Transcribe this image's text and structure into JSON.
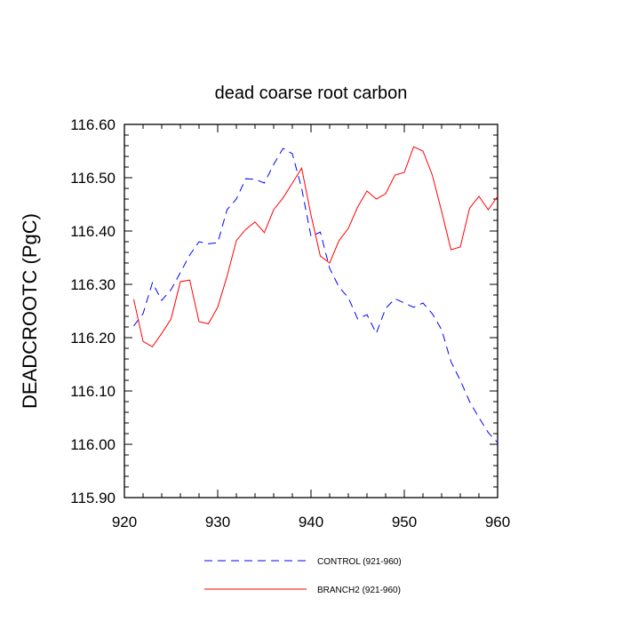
{
  "chart_data": {
    "type": "line",
    "title": "dead coarse root carbon",
    "xlabel": "",
    "ylabel": "DEADCROOTC  (PgC)",
    "xlim": [
      920,
      960
    ],
    "ylim": [
      115.9,
      116.6
    ],
    "x_ticks": [
      920,
      930,
      940,
      950,
      960
    ],
    "x_tick_labels": [
      "920",
      "930",
      "940",
      "950",
      "960"
    ],
    "y_ticks": [
      115.9,
      116.0,
      116.1,
      116.2,
      116.3,
      116.4,
      116.5,
      116.6
    ],
    "y_tick_labels": [
      "115.90",
      "116.00",
      "116.10",
      "116.20",
      "116.30",
      "116.40",
      "116.50",
      "116.60"
    ],
    "grid": false,
    "legend_position": "bottom",
    "series": [
      {
        "name": "CONTROL (921-960)",
        "color": "#0000ff",
        "line_style": "dashed",
        "x": [
          921,
          922,
          923,
          924,
          925,
          926,
          927,
          928,
          929,
          930,
          931,
          932,
          933,
          934,
          935,
          936,
          937,
          938,
          939,
          940,
          941,
          942,
          943,
          944,
          945,
          946,
          947,
          948,
          949,
          950,
          951,
          952,
          953,
          954,
          955,
          956,
          957,
          958,
          959,
          960
        ],
        "values": [
          116.222,
          116.245,
          116.303,
          116.27,
          116.29,
          116.322,
          116.355,
          116.38,
          116.376,
          116.378,
          116.44,
          116.46,
          116.498,
          116.497,
          116.49,
          116.525,
          116.555,
          116.545,
          116.48,
          116.39,
          116.398,
          116.33,
          116.295,
          116.275,
          116.235,
          116.243,
          116.208,
          116.255,
          116.273,
          116.265,
          116.257,
          116.265,
          116.245,
          116.215,
          116.155,
          116.12,
          116.08,
          116.05,
          116.022,
          116.003
        ]
      },
      {
        "name": "BRANCH2 (921-960)",
        "color": "#ff0000",
        "line_style": "solid",
        "x": [
          921,
          922,
          923,
          924,
          925,
          926,
          927,
          928,
          929,
          930,
          931,
          932,
          933,
          934,
          935,
          936,
          937,
          938,
          939,
          940,
          941,
          942,
          943,
          944,
          945,
          946,
          947,
          948,
          949,
          950,
          951,
          952,
          953,
          954,
          955,
          956,
          957,
          958,
          959,
          960
        ],
        "values": [
          116.272,
          116.193,
          116.183,
          116.208,
          116.235,
          116.305,
          116.308,
          116.23,
          116.226,
          116.257,
          116.315,
          116.382,
          116.403,
          116.417,
          116.397,
          116.44,
          116.462,
          116.49,
          116.518,
          116.43,
          116.353,
          116.34,
          116.382,
          116.405,
          116.445,
          116.475,
          116.46,
          116.47,
          116.505,
          116.51,
          116.558,
          116.55,
          116.505,
          116.437,
          116.365,
          116.37,
          116.443,
          116.465,
          116.44,
          116.465
        ]
      }
    ]
  }
}
